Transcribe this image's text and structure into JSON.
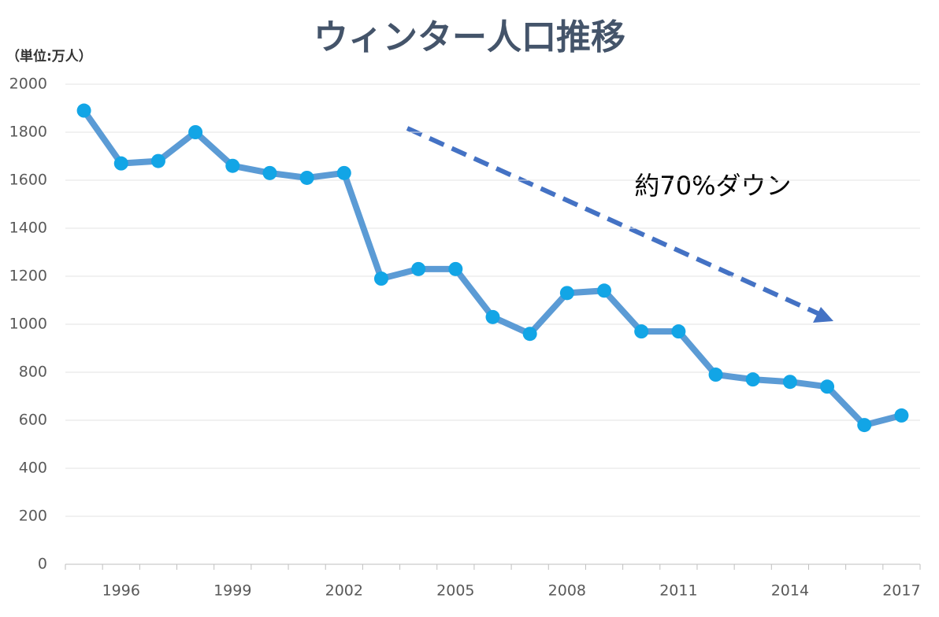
{
  "chart_data": {
    "type": "line",
    "title": "ウィンター人口推移",
    "unit_label": "（単位:万人）",
    "annotation": "約70%ダウン",
    "categories": [
      null,
      "1996",
      null,
      null,
      "1999",
      null,
      null,
      "2002",
      null,
      null,
      "2005",
      null,
      null,
      "2008",
      null,
      null,
      "2011",
      null,
      null,
      "2014",
      null,
      null,
      "2017"
    ],
    "series": [
      {
        "name": "ウィンター人口",
        "color": "#5b9bd5",
        "marker_color": "#12a5e6",
        "values": [
          1890,
          1670,
          1680,
          1800,
          1660,
          1630,
          1610,
          1630,
          1190,
          1230,
          1230,
          1030,
          960,
          1130,
          1140,
          970,
          970,
          790,
          770,
          760,
          740,
          580,
          620
        ]
      }
    ],
    "ylim": [
      0,
      2000
    ],
    "yticks": [
      0,
      200,
      400,
      600,
      800,
      1000,
      1200,
      1400,
      1600,
      1800,
      2000
    ],
    "grid": true
  }
}
